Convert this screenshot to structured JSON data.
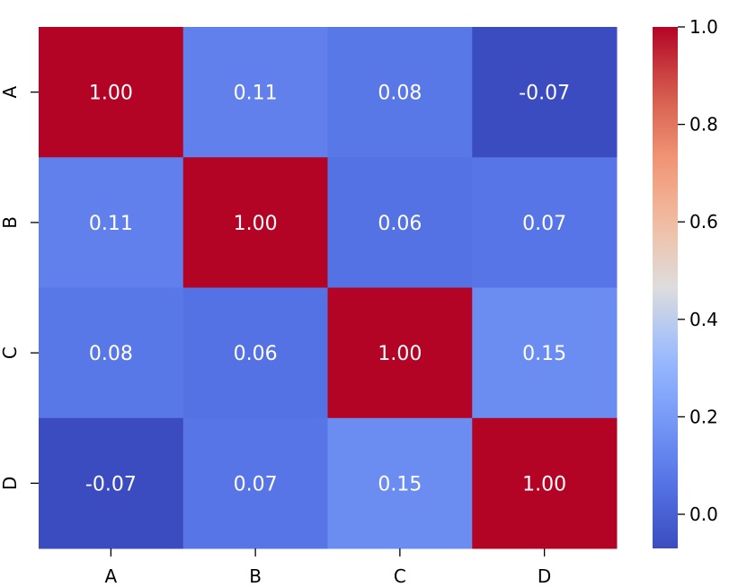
{
  "chart_data": {
    "type": "heatmap",
    "title": "",
    "xlabel": "",
    "ylabel": "",
    "row_labels": [
      "A",
      "B",
      "C",
      "D"
    ],
    "col_labels": [
      "A",
      "B",
      "C",
      "D"
    ],
    "values": [
      [
        1.0,
        0.11,
        0.08,
        -0.07
      ],
      [
        0.11,
        1.0,
        0.06,
        0.07
      ],
      [
        0.08,
        0.06,
        1.0,
        0.15
      ],
      [
        -0.07,
        0.07,
        0.15,
        1.0
      ]
    ],
    "cell_labels": [
      [
        "1.00",
        "0.11",
        "0.08",
        "-0.07"
      ],
      [
        "0.11",
        "1.00",
        "0.06",
        "0.07"
      ],
      [
        "0.08",
        "0.06",
        "1.00",
        "0.15"
      ],
      [
        "-0.07",
        "0.07",
        "0.15",
        "1.00"
      ]
    ],
    "colormap": "coolwarm",
    "vmin": -0.07,
    "vmax": 1.0,
    "colorbar": {
      "ticks": [
        0.0,
        0.2,
        0.4,
        0.6,
        0.8,
        1.0
      ],
      "tick_labels": [
        "0.0",
        "0.2",
        "0.4",
        "0.6",
        "0.8",
        "1.0"
      ],
      "position": "right"
    },
    "annotation_color": "#ffffff"
  }
}
